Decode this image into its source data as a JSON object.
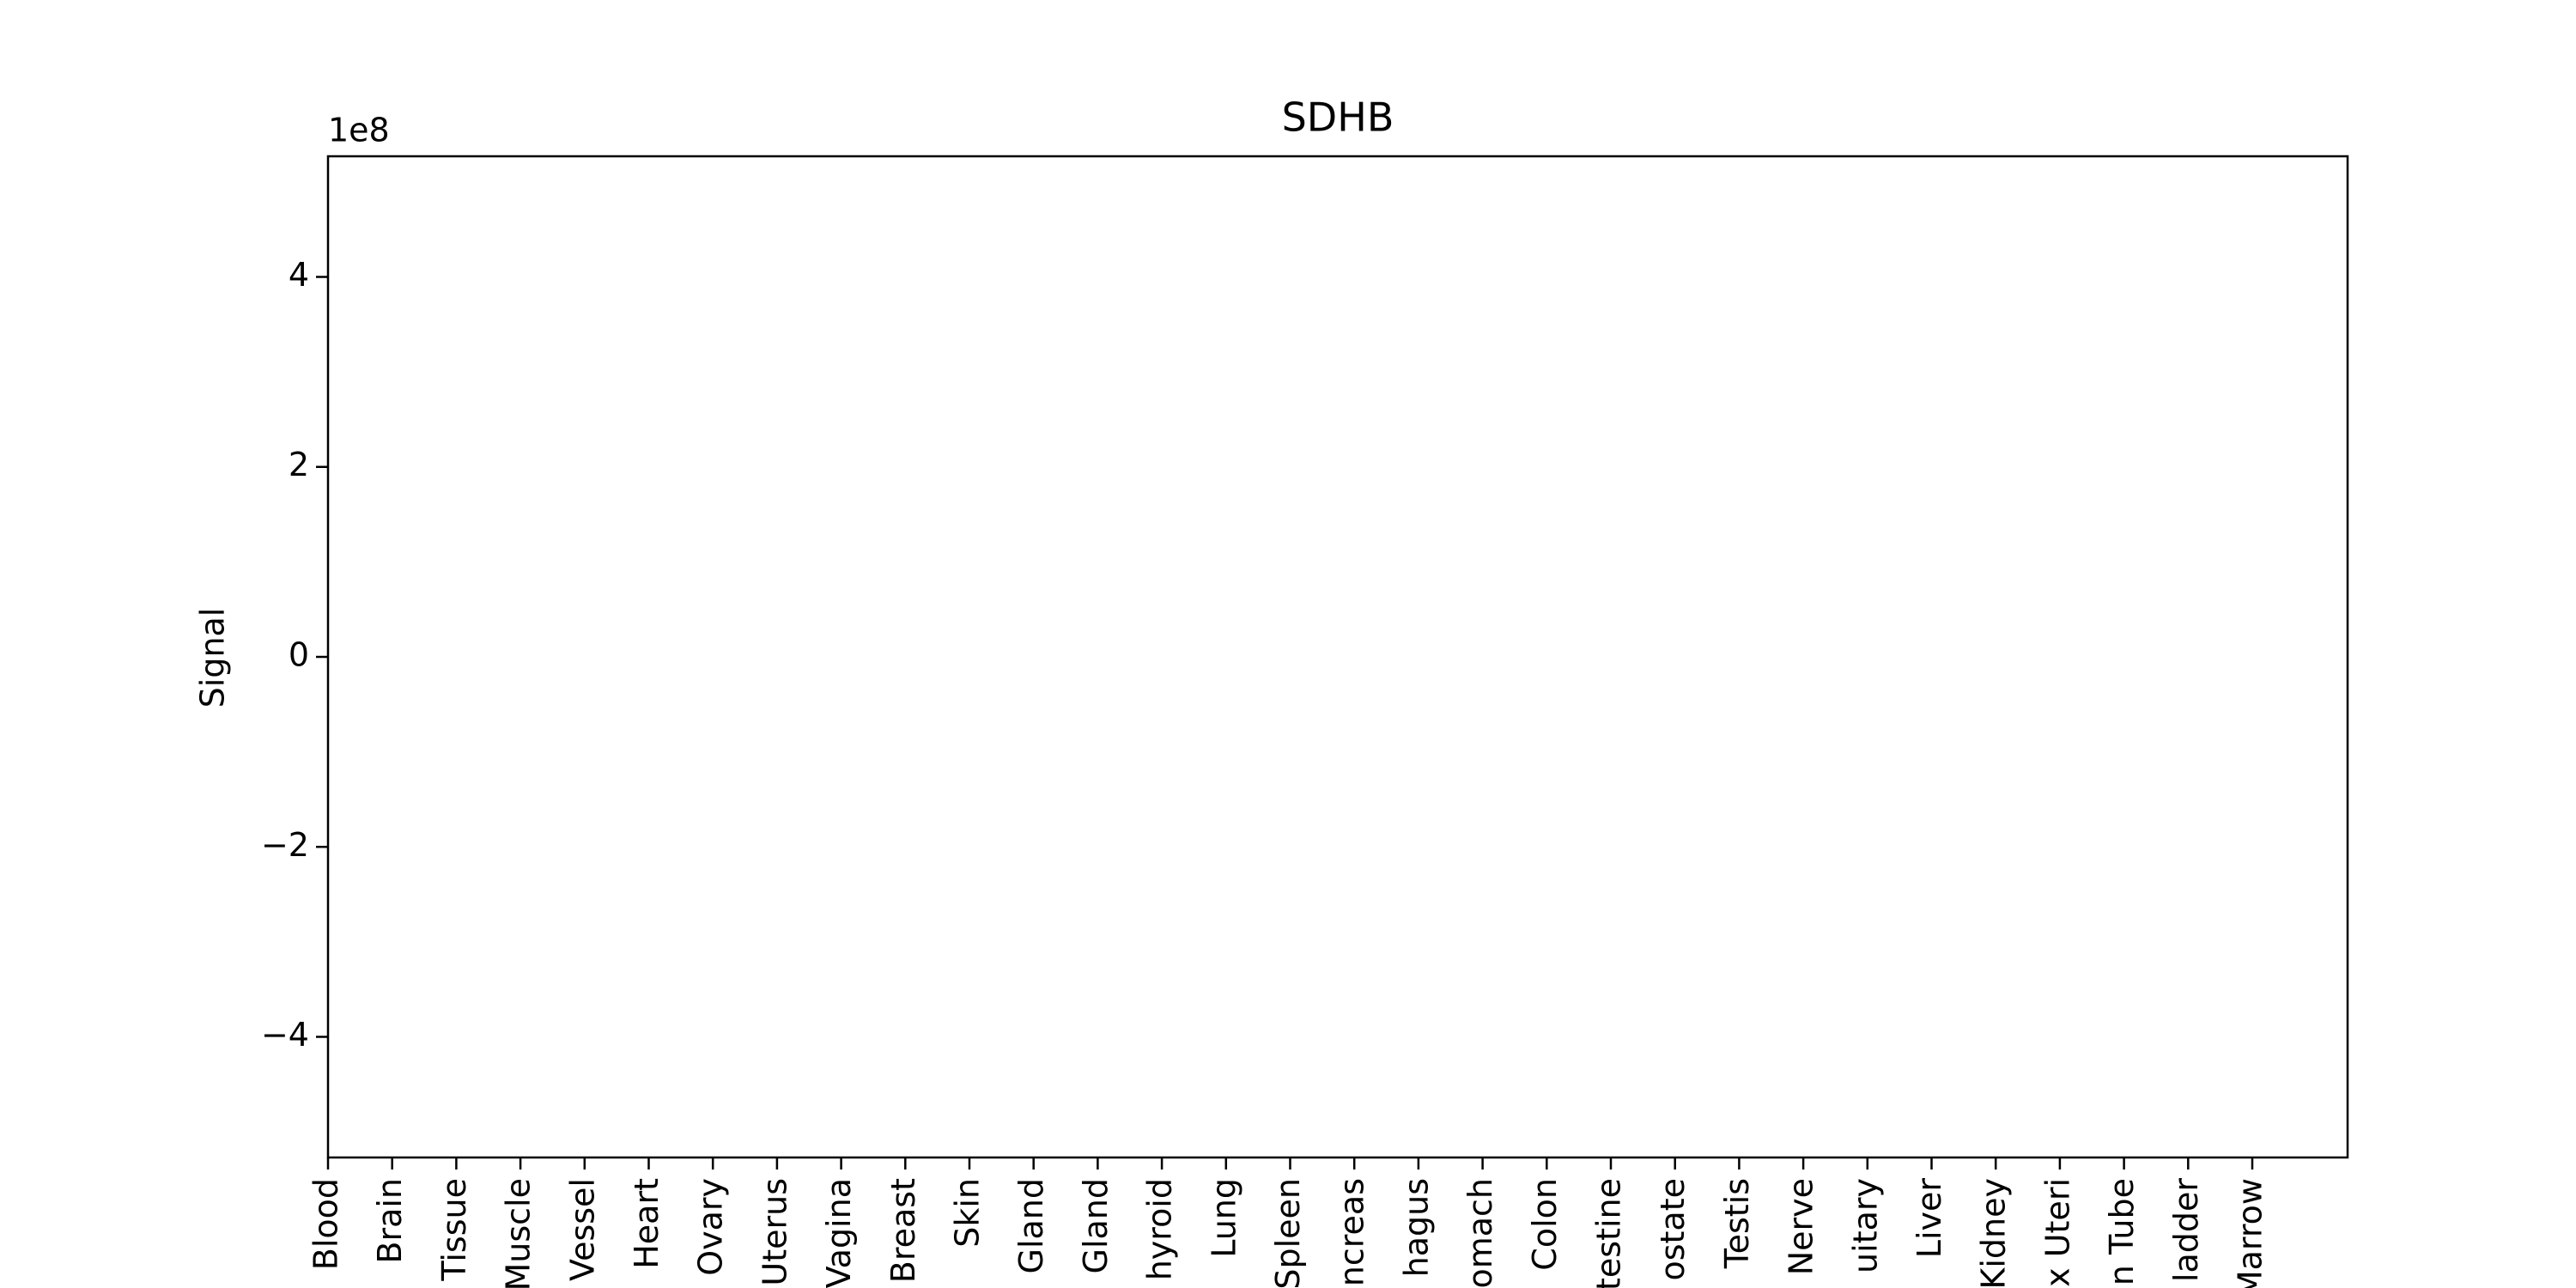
{
  "chart_data": {
    "type": "bar",
    "title": "SDHB",
    "y_label": "Signal",
    "y_offset_label": "1e8",
    "categories": [
      "Blood",
      "Brain",
      "Tissue",
      "Muscle",
      "Vessel",
      "Heart",
      "Ovary",
      "Uterus",
      "Vagina",
      "Breast",
      "Skin",
      "Gland",
      "Gland",
      "hyroid",
      "Lung",
      "Spleen",
      "ncreas",
      "hagus",
      "omach",
      "Colon",
      "testine",
      "ostate",
      "Testis",
      "Nerve",
      "uitary",
      "Liver",
      "Kidney",
      "x Uteri",
      "n Tube",
      "ladder",
      "Marrow"
    ],
    "values": [
      null,
      null,
      null,
      null,
      null,
      null,
      null,
      null,
      null,
      null,
      null,
      null,
      null,
      null,
      null,
      null,
      null,
      null,
      null,
      null,
      null,
      null,
      null,
      null,
      null,
      null,
      null,
      null,
      null,
      null,
      null
    ],
    "color": "#1f77b4",
    "ylim": [
      -527000000,
      527000000
    ],
    "yticks": [
      {
        "value": -400000000,
        "label": "−4"
      },
      {
        "value": -200000000,
        "label": "−2"
      },
      0,
      {
        "value": 200000000,
        "label": "2"
      },
      {
        "value": 400000000,
        "label": "4"
      }
    ],
    "grid": false
  }
}
